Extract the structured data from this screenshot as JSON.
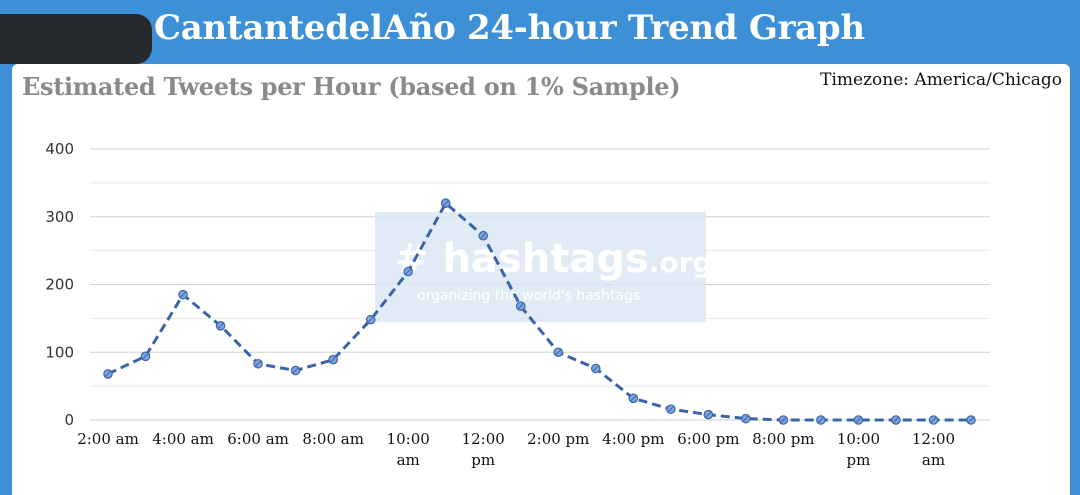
{
  "header": {
    "title": "CantantedelAño 24-hour Trend Graph"
  },
  "card": {
    "subtitle": "Estimated Tweets per Hour (based on 1% Sample)",
    "timezone": "Timezone: America/Chicago"
  },
  "watermark": {
    "brand": "# hashtags",
    "brand_suffix": ".org",
    "tagline": "organizing the world's hashtags"
  },
  "colors": {
    "header_bg": "#3d8fd6",
    "line": "#3b64a8",
    "marker_fill": "#7ea4dc"
  },
  "chart_data": {
    "type": "line",
    "title": "Estimated Tweets per Hour (based on 1% Sample)",
    "xlabel": "",
    "ylabel": "",
    "ylim": [
      0,
      400
    ],
    "yticks": [
      0,
      100,
      200,
      300,
      400
    ],
    "grid": true,
    "line_style": "dashed",
    "markers": true,
    "x": [
      "2:00 am",
      "3:00 am",
      "4:00 am",
      "5:00 am",
      "6:00 am",
      "7:00 am",
      "8:00 am",
      "9:00 am",
      "10:00 am",
      "11:00 am",
      "12:00 pm",
      "1:00 pm",
      "2:00 pm",
      "3:00 pm",
      "4:00 pm",
      "5:00 pm",
      "6:00 pm",
      "7:00 pm",
      "8:00 pm",
      "9:00 pm",
      "10:00 pm",
      "11:00 pm",
      "12:00 am",
      "1:00 am"
    ],
    "xtick_labels": [
      "2:00 am",
      "4:00 am",
      "6:00 am",
      "8:00 am",
      "10:00 am",
      "12:00 pm",
      "2:00 pm",
      "4:00 pm",
      "6:00 pm",
      "8:00 pm",
      "10:00 pm",
      "12:00 am"
    ],
    "series": [
      {
        "values": [
          68,
          94,
          185,
          139,
          83,
          73,
          89,
          148,
          219,
          320,
          272,
          168,
          100,
          76,
          32,
          16,
          8,
          2,
          0,
          0,
          0,
          0,
          0,
          0
        ]
      }
    ]
  }
}
